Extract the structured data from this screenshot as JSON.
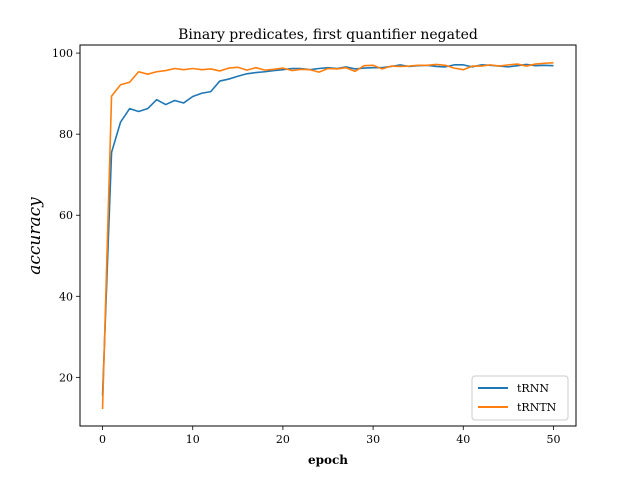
{
  "chart_data": {
    "type": "line",
    "title": "Binary predicates, first quantifier negated",
    "xlabel": "epoch",
    "ylabel": "accuracy",
    "xlim": [
      -2.5,
      52.5
    ],
    "ylim": [
      8,
      102
    ],
    "xticks": [
      0,
      10,
      20,
      30,
      40,
      50
    ],
    "yticks": [
      20,
      40,
      60,
      80,
      100
    ],
    "grid": false,
    "legend_position": "lower-right",
    "x": [
      0,
      1,
      2,
      3,
      4,
      5,
      6,
      7,
      8,
      9,
      10,
      11,
      12,
      13,
      14,
      15,
      16,
      17,
      18,
      19,
      20,
      21,
      22,
      23,
      24,
      25,
      26,
      27,
      28,
      29,
      30,
      31,
      32,
      33,
      34,
      35,
      36,
      37,
      38,
      39,
      40,
      41,
      42,
      43,
      44,
      45,
      46,
      47,
      48,
      49,
      50
    ],
    "series": [
      {
        "name": "tRNN",
        "color": "#1f77b4",
        "values": [
          15.5,
          75.5,
          83,
          86.3,
          85.6,
          86.3,
          88.5,
          87.3,
          88.3,
          87.7,
          89.3,
          90.1,
          90.5,
          93.1,
          93.6,
          94.3,
          94.9,
          95.2,
          95.4,
          95.7,
          95.9,
          96.2,
          96.2,
          95.9,
          96.2,
          96.4,
          96.2,
          96.6,
          96.1,
          96.3,
          96.4,
          96.4,
          96.7,
          97.1,
          96.7,
          96.9,
          97.0,
          96.7,
          96.6,
          97.1,
          97.1,
          96.6,
          97.1,
          97.0,
          96.8,
          96.6,
          96.9,
          97.2,
          96.9,
          97.0,
          96.9
        ]
      },
      {
        "name": "tRNTN",
        "color": "#ff7f0e",
        "values": [
          12.2,
          89.4,
          92.2,
          92.8,
          95.4,
          94.8,
          95.4,
          95.7,
          96.2,
          95.9,
          96.2,
          95.9,
          96.1,
          95.6,
          96.3,
          96.5,
          95.8,
          96.4,
          95.8,
          96.0,
          96.3,
          95.7,
          96.0,
          95.9,
          95.3,
          96.2,
          96.1,
          96.4,
          95.5,
          96.9,
          97.0,
          96.1,
          96.8,
          96.7,
          96.8,
          97.0,
          97.0,
          97.2,
          97.0,
          96.3,
          95.9,
          96.8,
          96.8,
          97.1,
          96.8,
          97.1,
          97.3,
          96.8,
          97.3,
          97.5,
          97.6
        ]
      }
    ]
  }
}
